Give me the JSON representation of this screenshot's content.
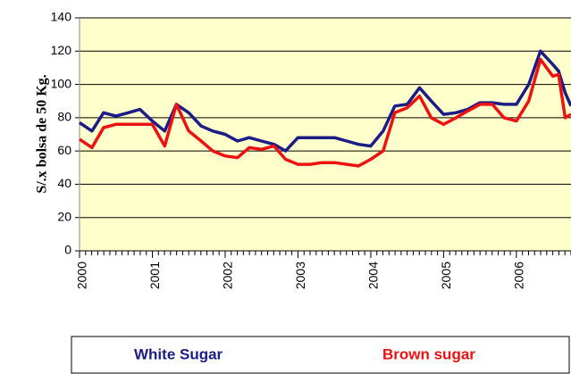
{
  "chart_data": {
    "type": "line",
    "y_label": "S/.x bolsa de 50 Kg.",
    "x": [
      2000.0,
      2000.17,
      2000.33,
      2000.5,
      2000.67,
      2000.83,
      2001.0,
      2001.17,
      2001.33,
      2001.5,
      2001.67,
      2001.83,
      2002.0,
      2002.17,
      2002.33,
      2002.5,
      2002.67,
      2002.83,
      2003.0,
      2003.17,
      2003.33,
      2003.5,
      2003.67,
      2003.83,
      2004.0,
      2004.17,
      2004.33,
      2004.5,
      2004.67,
      2004.83,
      2005.0,
      2005.17,
      2005.33,
      2005.5,
      2005.67,
      2005.83,
      2006.0,
      2006.17,
      2006.33,
      2006.5,
      2006.58,
      2006.67,
      2006.75
    ],
    "series": [
      {
        "name": "White Sugar",
        "color": "#1c1c86",
        "values": [
          77,
          72,
          83,
          81,
          83,
          85,
          78,
          72,
          88,
          83,
          75,
          72,
          70,
          66,
          68,
          66,
          64,
          60,
          68,
          68,
          68,
          68,
          66,
          64,
          63,
          72,
          87,
          88,
          98,
          90,
          82,
          83,
          85,
          89,
          89,
          88,
          88,
          100,
          120,
          112,
          108,
          95,
          87
        ]
      },
      {
        "name": "Brown sugar",
        "color": "#ee1111",
        "values": [
          67,
          62,
          74,
          76,
          76,
          76,
          76,
          63,
          88,
          72,
          66,
          60,
          57,
          56,
          62,
          61,
          63,
          55,
          52,
          52,
          53,
          53,
          52,
          51,
          55,
          60,
          83,
          86,
          93,
          80,
          76,
          80,
          84,
          88,
          88,
          80,
          78,
          90,
          115,
          105,
          106,
          80,
          82
        ]
      }
    ],
    "xlim": [
      2000,
      2006.75
    ],
    "xticks": [
      2000,
      2001,
      2002,
      2003,
      2004,
      2005,
      2006
    ],
    "ylim": [
      0,
      140
    ],
    "yticks": [
      0,
      20,
      40,
      60,
      80,
      100,
      120,
      140
    ],
    "grid": true,
    "background": "#ffffcc"
  }
}
